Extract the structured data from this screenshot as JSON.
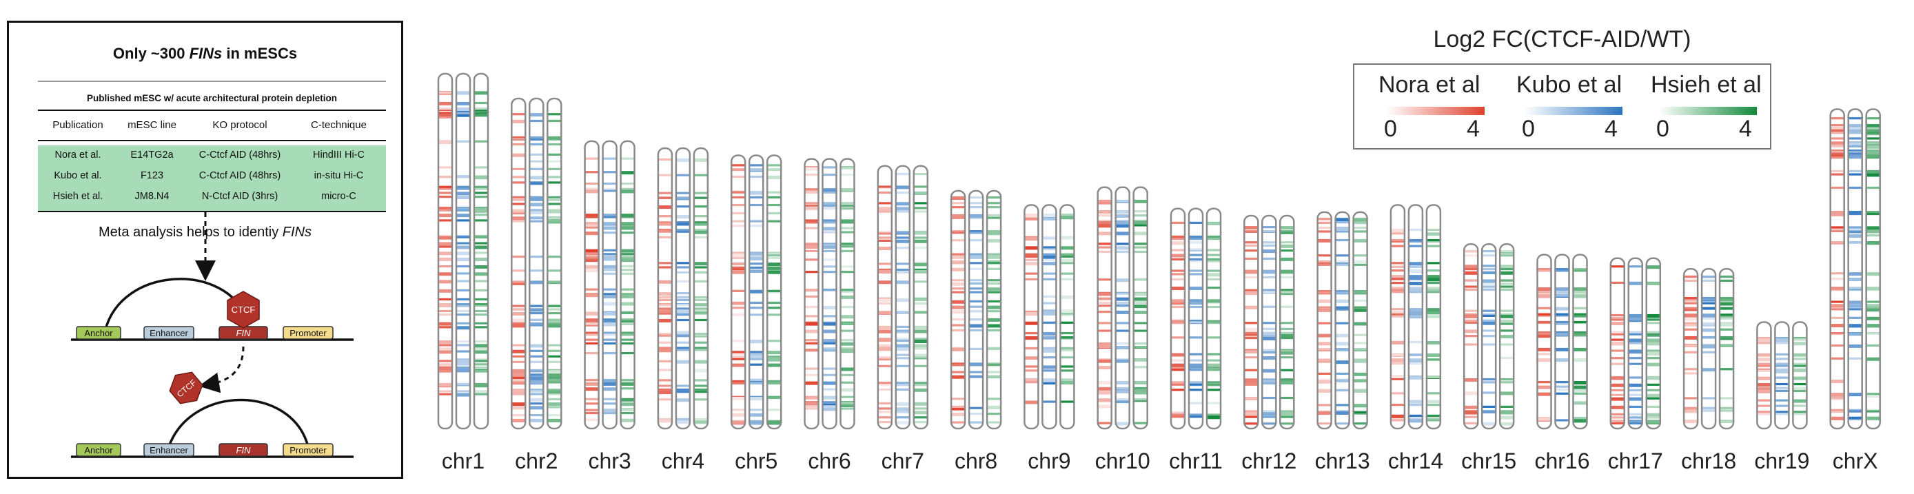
{
  "panel": {
    "title_prefix": "Only ~300 ",
    "title_em": "FINs",
    "title_suffix": " in mESCs",
    "table_caption": "Published mESC w/ acute architectural protein depletion",
    "headers": [
      "Publication",
      "mESC line",
      "KO protocol",
      "C-technique"
    ],
    "rows": [
      [
        "Nora et al.",
        "E14TG2a",
        "C-Ctcf AID (48hrs)",
        "HindIII Hi-C"
      ],
      [
        "Kubo et al.",
        "F123",
        "C-Ctcf AID (48hrs)",
        "in-situ Hi-C"
      ],
      [
        "Hsieh et al.",
        "JM8.N4",
        "N-Ctcf AID (3hrs)",
        "micro-C"
      ]
    ],
    "meta_prefix": "Meta analysis helps to identiy ",
    "meta_em": "FINs",
    "labels": {
      "anchor": "Anchor",
      "enhancer": "Enhancer",
      "fin": "FIN",
      "promoter": "Promoter",
      "ctcf": "CTCF"
    },
    "colors": {
      "anchor": "#a5c85a",
      "enhancer": "#b9cddd",
      "fin": "#a8342d",
      "promoter": "#f5dc8c",
      "ctcf": "#b03228",
      "table_fill": "#a8dcb8"
    }
  },
  "legend": {
    "title": "Log2 FC(CTCF-AID/WT)",
    "studies": [
      {
        "name": "Nora et al",
        "min": "0",
        "max": "4",
        "color": "#e0402d"
      },
      {
        "name": "Kubo et al",
        "min": "0",
        "max": "4",
        "color": "#2c74c0"
      },
      {
        "name": "Hsieh et al",
        "min": "0",
        "max": "4",
        "color": "#138a3c"
      }
    ]
  },
  "chromosomes": [
    {
      "name": "chr1",
      "rel_length": 1.0,
      "seed": 11
    },
    {
      "name": "chr2",
      "rel_length": 0.93,
      "seed": 23
    },
    {
      "name": "chr3",
      "rel_length": 0.81,
      "seed": 37
    },
    {
      "name": "chr4",
      "rel_length": 0.79,
      "seed": 41
    },
    {
      "name": "chr5",
      "rel_length": 0.77,
      "seed": 53
    },
    {
      "name": "chr6",
      "rel_length": 0.76,
      "seed": 67
    },
    {
      "name": "chr7",
      "rel_length": 0.74,
      "seed": 71
    },
    {
      "name": "chr8",
      "rel_length": 0.67,
      "seed": 83
    },
    {
      "name": "chr9",
      "rel_length": 0.63,
      "seed": 97
    },
    {
      "name": "chr10",
      "rel_length": 0.68,
      "seed": 101
    },
    {
      "name": "chr11",
      "rel_length": 0.62,
      "seed": 113
    },
    {
      "name": "chr12",
      "rel_length": 0.6,
      "seed": 127
    },
    {
      "name": "chr13",
      "rel_length": 0.61,
      "seed": 131
    },
    {
      "name": "chr14",
      "rel_length": 0.63,
      "seed": 149
    },
    {
      "name": "chr15",
      "rel_length": 0.52,
      "seed": 151
    },
    {
      "name": "chr16",
      "rel_length": 0.49,
      "seed": 163
    },
    {
      "name": "chr17",
      "rel_length": 0.48,
      "seed": 173
    },
    {
      "name": "chr18",
      "rel_length": 0.45,
      "seed": 181
    },
    {
      "name": "chr19",
      "rel_length": 0.3,
      "seed": 191
    },
    {
      "name": "chrX",
      "rel_length": 0.9,
      "seed": 199
    }
  ]
}
